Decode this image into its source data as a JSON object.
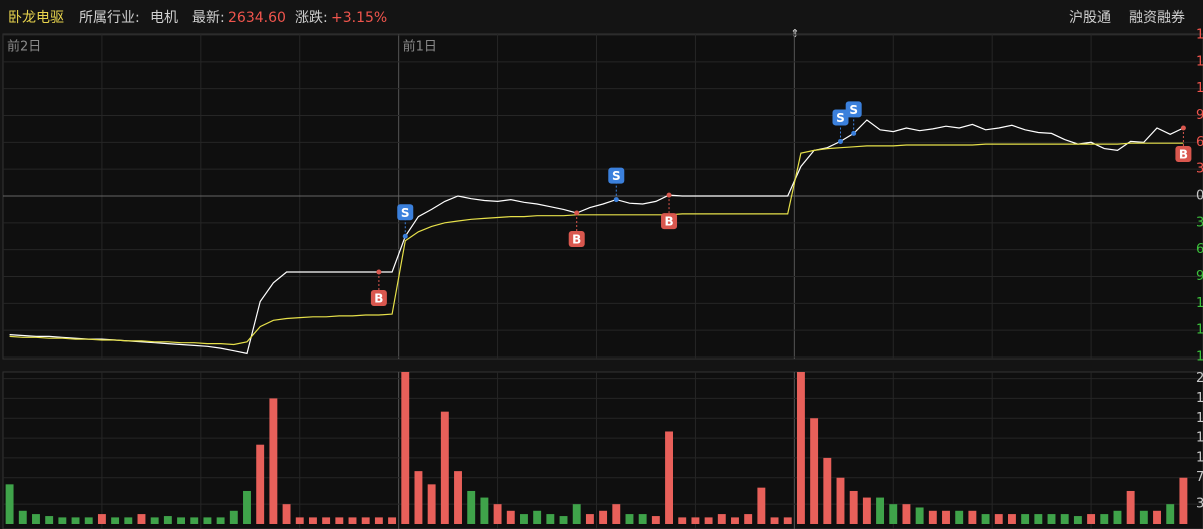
{
  "header": {
    "name": "卧龙电驱",
    "industry_label": "所属行业:",
    "industry": "电机",
    "latest_label": "最新:",
    "latest": "2634.60",
    "change_label": "涨跌:",
    "change": "+3.15%",
    "links": [
      "沪股通",
      "融资融券"
    ]
  },
  "chart_data": [
    {
      "type": "line",
      "categories": [
        "前2日",
        null,
        null,
        null,
        null,
        null,
        null,
        null,
        null,
        null,
        null,
        null,
        null,
        null,
        null,
        null,
        null,
        null,
        null,
        null,
        null,
        null,
        null,
        null,
        null,
        null,
        null,
        null,
        null,
        null,
        "前1日",
        null,
        null,
        null,
        null,
        null,
        null,
        null,
        null,
        null,
        null,
        null,
        null,
        null,
        null,
        null,
        null,
        null,
        null,
        null,
        null,
        null,
        null,
        null,
        null,
        null,
        null,
        null,
        null,
        null,
        null,
        null,
        null,
        null,
        null,
        null,
        null,
        null,
        null,
        null,
        null,
        null,
        null,
        null,
        null,
        null,
        null,
        null,
        null,
        null,
        null,
        null,
        null,
        null,
        null,
        null,
        null,
        null,
        null,
        null
      ],
      "series": [
        {
          "color": "#ffffff",
          "values": [
            -15.5,
            -15.6,
            -15.7,
            -15.7,
            -15.8,
            -15.9,
            -16.0,
            -16.0,
            -16.1,
            -16.2,
            -16.3,
            -16.4,
            -16.5,
            -16.6,
            -16.7,
            -16.8,
            -17.0,
            -17.3,
            -17.6,
            -11.8,
            -9.7,
            -8.5,
            -8.5,
            -8.5,
            -8.5,
            -8.5,
            -8.5,
            -8.5,
            -8.5,
            -8.5,
            -4.5,
            -2.3,
            -1.5,
            -0.6,
            0,
            -0.3,
            -0.5,
            -0.6,
            -0.4,
            -0.7,
            -0.9,
            -1.2,
            -1.5,
            -1.9,
            -1.3,
            -0.9,
            -0.4,
            -0.8,
            -0.9,
            -0.6,
            0.1,
            0,
            0,
            0,
            0,
            0,
            0,
            0,
            0,
            0,
            3.3,
            5.1,
            5.4,
            6.1,
            7.0,
            8.5,
            7.4,
            7.2,
            7.6,
            7.3,
            7.5,
            7.8,
            7.6,
            8.0,
            7.4,
            7.6,
            7.9,
            7.4,
            7.1,
            7.0,
            6.3,
            5.8,
            6.0,
            5.3,
            5.1,
            6.1,
            6.0,
            7.6,
            6.9,
            7.6
          ]
        },
        {
          "color": "#e6e04a",
          "values": [
            -15.7,
            -15.8,
            -15.8,
            -15.9,
            -15.9,
            -16.0,
            -16.0,
            -16.1,
            -16.1,
            -16.2,
            -16.2,
            -16.3,
            -16.3,
            -16.4,
            -16.4,
            -16.5,
            -16.5,
            -16.6,
            -16.3,
            -14.6,
            -13.9,
            -13.7,
            -13.6,
            -13.5,
            -13.5,
            -13.4,
            -13.4,
            -13.3,
            -13.3,
            -13.2,
            -5.0,
            -4.0,
            -3.4,
            -3.0,
            -2.8,
            -2.6,
            -2.5,
            -2.4,
            -2.3,
            -2.3,
            -2.2,
            -2.2,
            -2.2,
            -2.1,
            -2.1,
            -2.1,
            -2.1,
            -2.1,
            -2.1,
            -2.1,
            -2.1,
            -2.0,
            -2.0,
            -2.0,
            -2.0,
            -2.0,
            -2.0,
            -2.0,
            -2.0,
            -2.0,
            4.8,
            5.1,
            5.3,
            5.4,
            5.5,
            5.6,
            5.6,
            5.6,
            5.7,
            5.7,
            5.7,
            5.7,
            5.7,
            5.7,
            5.8,
            5.8,
            5.8,
            5.8,
            5.8,
            5.8,
            5.8,
            5.8,
            5.8,
            5.8,
            5.8,
            5.9,
            5.9,
            5.9,
            5.9,
            5.9
          ]
        }
      ],
      "ylim": [
        -18,
        18
      ],
      "yticks": [
        {
          "value": 18,
          "label": "1"
        },
        {
          "value": 15,
          "label": "1"
        },
        {
          "value": 12,
          "label": "1"
        },
        9,
        6,
        3,
        0,
        {
          "value": -3,
          "label": "3"
        },
        {
          "value": -6,
          "label": "6"
        },
        {
          "value": -9,
          "label": "9"
        },
        {
          "value": -12,
          "label": "1"
        },
        {
          "value": -15,
          "label": "1"
        },
        {
          "value": -18,
          "label": "1"
        }
      ],
      "up_color": "#f0554d",
      "down_color": "#3cc23c",
      "flat_color": "#c8c8c8",
      "grid": true,
      "annotations": [
        {
          "text": "B",
          "index": 28,
          "color": "#d9574e",
          "side": "below"
        },
        {
          "text": "S",
          "index": 30,
          "color": "#3b80dc",
          "side": "above"
        },
        {
          "text": "B",
          "index": 43,
          "color": "#d9574e",
          "side": "below"
        },
        {
          "text": "S",
          "index": 46,
          "color": "#3b80dc",
          "side": "above"
        },
        {
          "text": "B",
          "index": 50,
          "color": "#d9574e",
          "side": "below"
        },
        {
          "text": "S",
          "index": 63,
          "color": "#3b80dc",
          "side": "above"
        },
        {
          "text": "S",
          "index": 64,
          "color": "#3b80dc",
          "side": "above"
        },
        {
          "text": "B",
          "index": 89,
          "color": "#d9574e",
          "side": "below"
        }
      ]
    },
    {
      "type": "bar",
      "values": [
        6,
        2,
        1.5,
        1.2,
        1,
        1,
        1,
        1.5,
        1,
        1,
        1.5,
        1,
        1.2,
        1,
        1,
        1,
        1,
        2,
        5,
        12,
        19,
        3,
        1,
        1,
        1,
        1,
        1,
        1,
        1,
        1,
        23,
        8,
        6,
        17,
        8,
        5,
        4,
        3,
        2,
        1.5,
        2,
        1.5,
        1.2,
        3,
        1.5,
        2,
        3,
        1.5,
        1.5,
        1.2,
        14,
        1,
        1,
        1,
        1.5,
        1,
        1.5,
        5.5,
        1,
        1,
        23,
        16,
        10,
        7,
        5,
        4,
        4,
        3,
        3,
        2.5,
        2,
        2,
        2,
        2,
        1.5,
        1.5,
        1.5,
        1.5,
        1.5,
        1.5,
        1.5,
        1.2,
        1.5,
        1.5,
        2,
        5,
        2,
        2,
        3,
        7
      ],
      "colors": [
        "#3fa34a",
        "#3fa34a",
        "#3fa34a",
        "#3fa34a",
        "#3fa34a",
        "#3fa34a",
        "#3fa34a",
        "#e8605a",
        "#3fa34a",
        "#3fa34a",
        "#e8605a",
        "#3fa34a",
        "#3fa34a",
        "#3fa34a",
        "#3fa34a",
        "#3fa34a",
        "#3fa34a",
        "#3fa34a",
        "#3fa34a",
        "#e8605a",
        "#e8605a",
        "#e8605a",
        "#e8605a",
        "#e8605a",
        "#e8605a",
        "#e8605a",
        "#e8605a",
        "#e8605a",
        "#e8605a",
        "#e8605a",
        "#e8605a",
        "#e8605a",
        "#e8605a",
        "#e8605a",
        "#e8605a",
        "#3fa34a",
        "#3fa34a",
        "#e8605a",
        "#e8605a",
        "#3fa34a",
        "#3fa34a",
        "#3fa34a",
        "#3fa34a",
        "#3fa34a",
        "#e8605a",
        "#e8605a",
        "#e8605a",
        "#3fa34a",
        "#3fa34a",
        "#e8605a",
        "#e8605a",
        "#e8605a",
        "#e8605a",
        "#e8605a",
        "#e8605a",
        "#e8605a",
        "#e8605a",
        "#e8605a",
        "#e8605a",
        "#e8605a",
        "#e8605a",
        "#e8605a",
        "#e8605a",
        "#e8605a",
        "#e8605a",
        "#e8605a",
        "#3fa34a",
        "#3fa34a",
        "#e8605a",
        "#3fa34a",
        "#e8605a",
        "#e8605a",
        "#3fa34a",
        "#e8605a",
        "#3fa34a",
        "#e8605a",
        "#e8605a",
        "#3fa34a",
        "#3fa34a",
        "#3fa34a",
        "#3fa34a",
        "#3fa34a",
        "#e8605a",
        "#3fa34a",
        "#3fa34a",
        "#e8605a",
        "#3fa34a",
        "#e8605a",
        "#3fa34a",
        "#e8605a"
      ],
      "ylim": [
        0,
        23
      ],
      "yticks": [
        {
          "value": 22,
          "label": "2"
        },
        {
          "value": 19,
          "label": "1"
        },
        {
          "value": 16,
          "label": "1"
        },
        {
          "value": 13,
          "label": "1"
        },
        {
          "value": 10,
          "label": "1"
        },
        7,
        3
      ],
      "tick_color": "#c8c8c8",
      "grid": true
    }
  ]
}
